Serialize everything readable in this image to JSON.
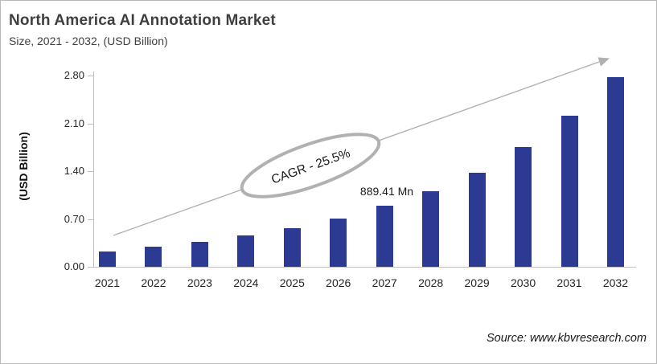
{
  "header": {
    "title": "North America AI Annotation Market",
    "subtitle": "Size, 2021 - 2032, (USD Billion)"
  },
  "chart_data": {
    "type": "bar",
    "title": "North America AI Annotation Market Size, 2021 - 2032, (USD Billion)",
    "categories": [
      "2021",
      "2022",
      "2023",
      "2024",
      "2025",
      "2026",
      "2027",
      "2028",
      "2029",
      "2030",
      "2031",
      "2032"
    ],
    "values": [
      0.22,
      0.29,
      0.37,
      0.46,
      0.57,
      0.71,
      0.889,
      1.11,
      1.38,
      1.75,
      2.21,
      2.78
    ],
    "xlabel": "",
    "ylabel": "(USD Billion)",
    "ylim": [
      0,
      2.8
    ],
    "ytick_labels": [
      "0.00",
      "0.70",
      "1.40",
      "2.10",
      "2.80"
    ],
    "yticks": [
      0.0,
      0.7,
      1.4,
      2.1,
      2.8
    ],
    "grid": false,
    "legend": false,
    "annotations": {
      "cagr_label": "CAGR - 25.5%",
      "value_label": "889.41 Mn",
      "value_label_category": "2027"
    }
  },
  "footer": {
    "source": "Source: www.kbvresearch.com"
  },
  "colors": {
    "bar": "#2c3a93",
    "axis": "#bfbfbf",
    "trend": "#b1b1b1",
    "title_text": "#3f3f3f",
    "tick_text": "#262626"
  }
}
